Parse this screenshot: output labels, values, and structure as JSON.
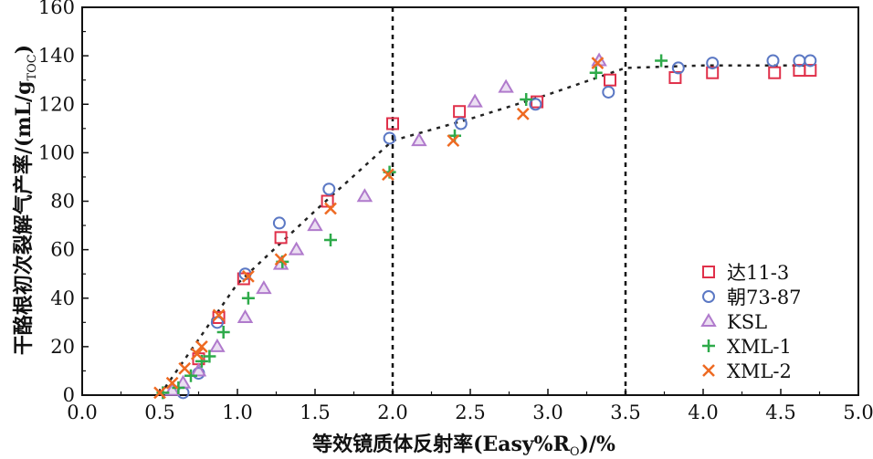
{
  "chart_data": {
    "type": "scatter",
    "xlabel": "等效镜质体反射率(Easy%R",
    "xlabel_sub": "O",
    "xlabel_suffix": ")/%",
    "ylabel": "干酪根初次裂解气产率/(mL/g",
    "ylabel_sub": "TOC",
    "ylabel_suffix": ")",
    "xlim": [
      0.0,
      5.0
    ],
    "ylim": [
      0,
      160
    ],
    "xticks": [
      0.0,
      0.5,
      1.0,
      1.5,
      2.0,
      2.5,
      3.0,
      3.5,
      4.0,
      4.5,
      5.0
    ],
    "xtick_labels": [
      "0.0",
      "0.5",
      "1.0",
      "1.5",
      "2.0",
      "2.5",
      "3.0",
      "3.5",
      "4.0",
      "4.5",
      "5.0"
    ],
    "yticks": [
      0,
      20,
      40,
      60,
      80,
      100,
      120,
      140,
      160
    ],
    "ytick_labels": [
      "0",
      "20",
      "40",
      "60",
      "80",
      "100",
      "120",
      "140",
      "160"
    ],
    "grid": false,
    "legend_position": "bottom-right",
    "vlines": [
      2.0,
      3.5
    ],
    "trend_line": {
      "x": [
        0.5,
        1.0,
        1.5,
        2.0,
        2.5,
        3.0,
        3.5,
        4.0,
        4.5,
        4.7
      ],
      "y": [
        0,
        46,
        76,
        105,
        114,
        124,
        135,
        136,
        136,
        136
      ],
      "color": "#222222"
    },
    "series": [
      {
        "name": "达11-3",
        "marker": "square",
        "color": "#e0304a",
        "x": [
          0.88,
          0.75,
          1.04,
          1.28,
          1.58,
          2.0,
          2.43,
          2.93,
          3.4,
          3.82,
          4.06,
          4.46,
          4.62,
          4.69
        ],
        "y": [
          32,
          15,
          48,
          65,
          80,
          112,
          117,
          121,
          130,
          131,
          133,
          133,
          134,
          134
        ]
      },
      {
        "name": "朝73-87",
        "marker": "circle",
        "color": "#5b78c4",
        "x": [
          0.65,
          0.75,
          0.87,
          1.05,
          1.27,
          1.59,
          1.98,
          2.44,
          2.92,
          3.39,
          3.84,
          4.06,
          4.45,
          4.62,
          4.69
        ],
        "y": [
          1,
          9,
          30,
          50,
          71,
          85,
          106,
          112,
          120,
          125,
          135,
          137,
          138,
          138,
          138
        ]
      },
      {
        "name": "KSL",
        "marker": "triangle",
        "color": "#b07acc",
        "x": [
          0.58,
          0.65,
          0.75,
          0.87,
          1.05,
          1.17,
          1.28,
          1.38,
          1.5,
          1.82,
          2.17,
          2.53,
          2.73,
          3.33
        ],
        "y": [
          2,
          5,
          10,
          20,
          32,
          44,
          54,
          60,
          70,
          82,
          105,
          121,
          127,
          138
        ]
      },
      {
        "name": "XML-1",
        "marker": "plus",
        "color": "#2eaa4a",
        "x": [
          0.52,
          0.62,
          0.7,
          0.77,
          0.82,
          0.91,
          1.07,
          1.29,
          1.6,
          1.98,
          2.4,
          2.86,
          3.31,
          3.73
        ],
        "y": [
          1,
          3,
          8,
          14,
          16,
          26,
          40,
          55,
          64,
          92,
          107,
          122,
          133,
          138
        ]
      },
      {
        "name": "XML-2",
        "marker": "x",
        "color": "#ee6a22",
        "x": [
          0.5,
          0.58,
          0.66,
          0.74,
          0.77,
          0.88,
          1.07,
          1.28,
          1.6,
          1.97,
          2.39,
          2.84,
          3.32
        ],
        "y": [
          1,
          5,
          11,
          17,
          20,
          33,
          49,
          56,
          77,
          91,
          105,
          116,
          137
        ]
      }
    ]
  }
}
